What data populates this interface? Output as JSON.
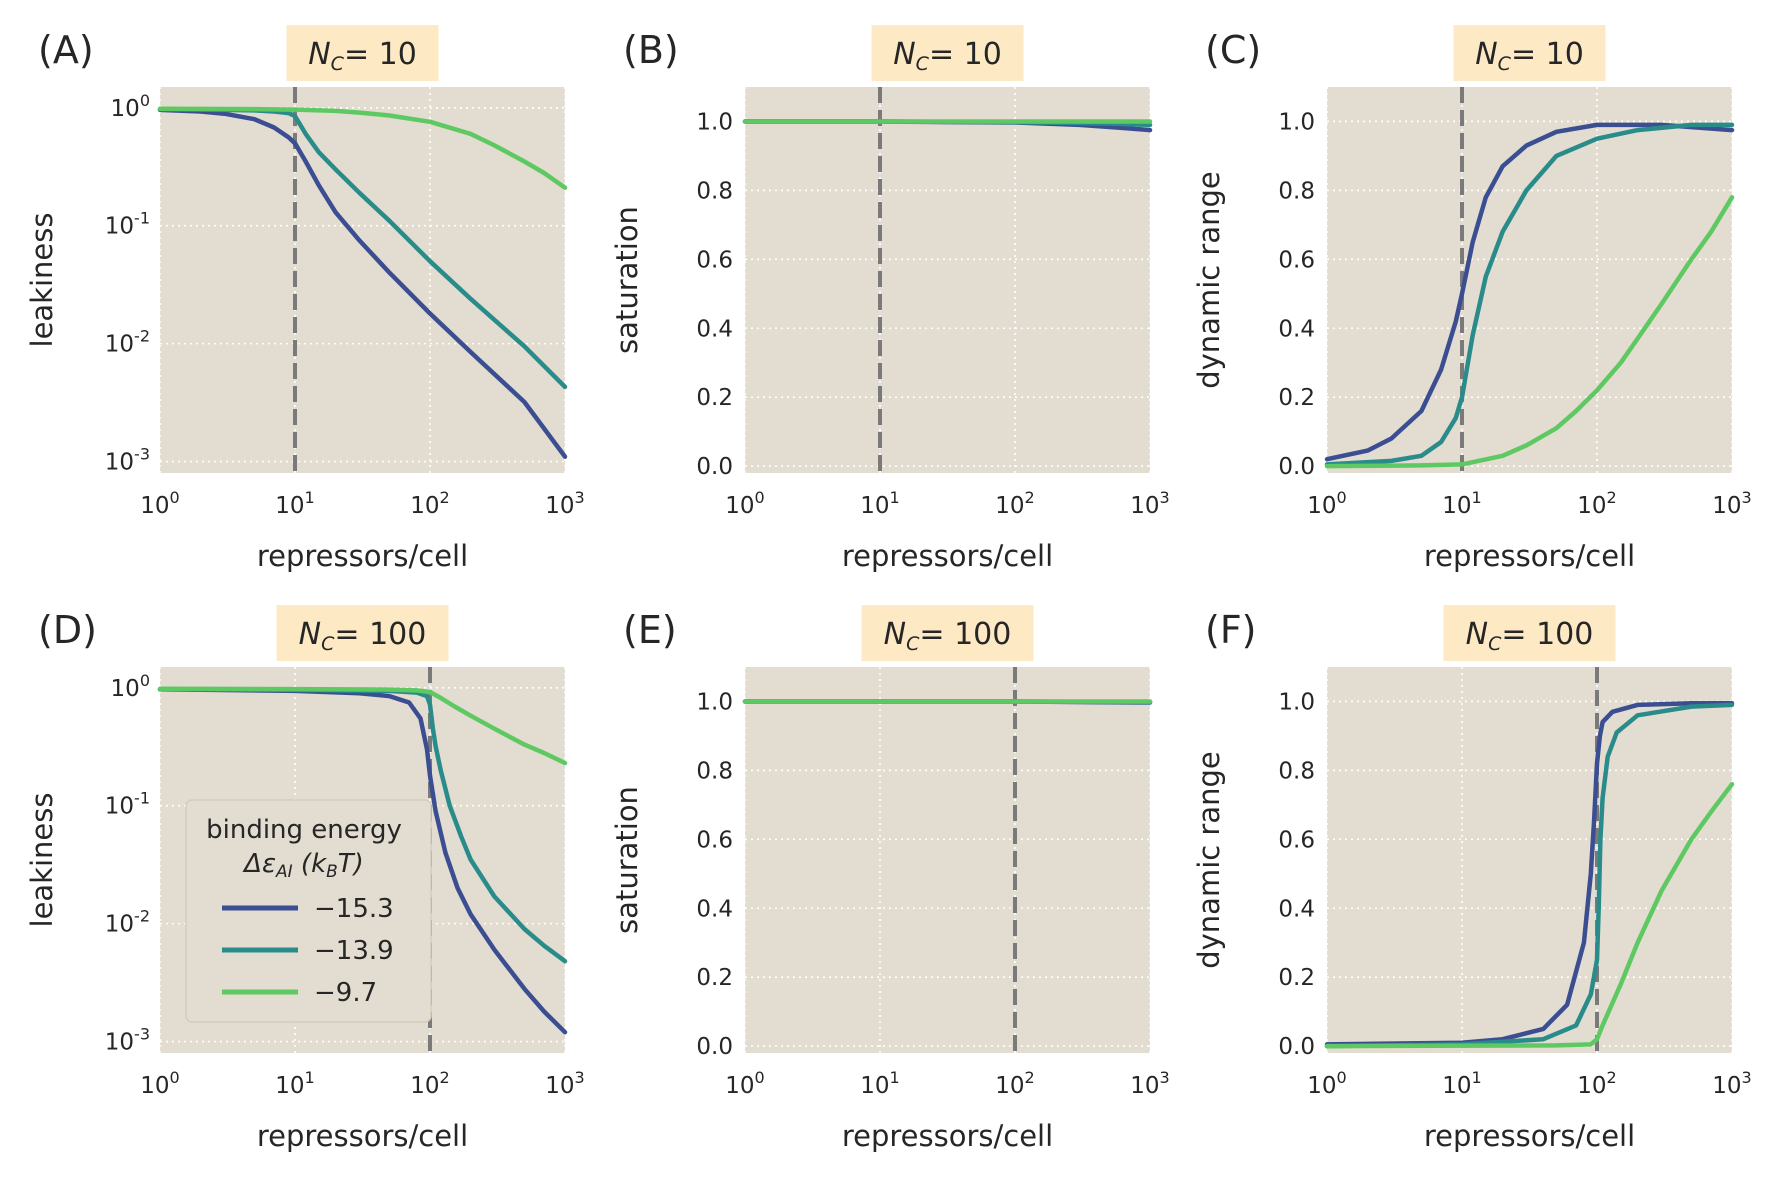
{
  "colors": {
    "plot_bg": "#e3dcd0",
    "grid": "#ffffff",
    "label_box": "#fde9c4",
    "vline": "#7a7a7a",
    "text": "#262626",
    "series": [
      "#3b4e91",
      "#2a8c8a",
      "#5ec962"
    ]
  },
  "legend": {
    "title_line1": "binding energy",
    "title_line2_symbol": "Δε",
    "title_line2_sub": "AI",
    "title_line2_unit": "(k",
    "title_line2_unit_sub": "B",
    "title_line2_unit_end": "T)",
    "entries": [
      "−15.3",
      "−13.9",
      "−9.7"
    ]
  },
  "chart_data": [
    {
      "panel": "(A)",
      "type": "line",
      "label_prefix": "N",
      "label_sub": "C",
      "label_text": "= 10",
      "xlabel": "repressors/cell",
      "ylabel": "leakiness",
      "xscale": "log",
      "xlim": [
        1,
        1000
      ],
      "xticks": [
        "10^0",
        "10^1",
        "10^2",
        "10^3"
      ],
      "yscale": "log",
      "ylim": [
        0.0008,
        1.5
      ],
      "yticks": [
        "10^0",
        "10^-1",
        "10^-2",
        "10^-3"
      ],
      "vline": 10,
      "grid": true,
      "series": [
        {
          "name": "−15.3",
          "x": [
            1,
            2,
            3,
            5,
            7,
            9,
            10,
            12,
            15,
            20,
            30,
            50,
            100,
            200,
            500,
            1000
          ],
          "y": [
            0.96,
            0.93,
            0.89,
            0.8,
            0.68,
            0.56,
            0.5,
            0.35,
            0.22,
            0.13,
            0.075,
            0.04,
            0.018,
            0.0085,
            0.0032,
            0.0011
          ]
        },
        {
          "name": "−13.9",
          "x": [
            1,
            3,
            5,
            7,
            9,
            10,
            12,
            15,
            20,
            30,
            50,
            100,
            200,
            500,
            1000
          ],
          "y": [
            0.97,
            0.96,
            0.95,
            0.93,
            0.9,
            0.85,
            0.6,
            0.42,
            0.3,
            0.19,
            0.11,
            0.05,
            0.024,
            0.0095,
            0.0043
          ]
        },
        {
          "name": "−9.7",
          "x": [
            1,
            5,
            10,
            20,
            30,
            50,
            100,
            200,
            300,
            500,
            700,
            1000
          ],
          "y": [
            0.98,
            0.975,
            0.965,
            0.94,
            0.91,
            0.86,
            0.76,
            0.6,
            0.48,
            0.35,
            0.28,
            0.21
          ]
        }
      ]
    },
    {
      "panel": "(B)",
      "type": "line",
      "label_prefix": "N",
      "label_sub": "C",
      "label_text": "= 10",
      "xlabel": "repressors/cell",
      "ylabel": "saturation",
      "xscale": "log",
      "xlim": [
        1,
        1000
      ],
      "xticks": [
        "10^0",
        "10^1",
        "10^2",
        "10^3"
      ],
      "yscale": "linear",
      "ylim": [
        -0.02,
        1.1
      ],
      "yticks": [
        "0.0",
        "0.2",
        "0.4",
        "0.6",
        "0.8",
        "1.0"
      ],
      "vline": 10,
      "grid": true,
      "series": [
        {
          "name": "−15.3",
          "x": [
            1,
            10,
            100,
            300,
            600,
            1000
          ],
          "y": [
            1.0,
            1.0,
            0.997,
            0.99,
            0.982,
            0.975
          ]
        },
        {
          "name": "−13.9",
          "x": [
            1,
            10,
            100,
            500,
            1000
          ],
          "y": [
            1.0,
            1.0,
            0.998,
            0.994,
            0.99
          ]
        },
        {
          "name": "−9.7",
          "x": [
            1,
            10,
            100,
            1000
          ],
          "y": [
            1.0,
            1.0,
            1.0,
            1.0
          ]
        }
      ]
    },
    {
      "panel": "(C)",
      "type": "line",
      "label_prefix": "N",
      "label_sub": "C",
      "label_text": "= 10",
      "xlabel": "repressors/cell",
      "ylabel": "dynamic range",
      "xscale": "log",
      "xlim": [
        1,
        1000
      ],
      "xticks": [
        "10^0",
        "10^1",
        "10^2",
        "10^3"
      ],
      "yscale": "linear",
      "ylim": [
        -0.02,
        1.1
      ],
      "yticks": [
        "0.0",
        "0.2",
        "0.4",
        "0.6",
        "0.8",
        "1.0"
      ],
      "vline": 10,
      "grid": true,
      "series": [
        {
          "name": "−15.3",
          "x": [
            1,
            2,
            3,
            5,
            7,
            9,
            10,
            12,
            15,
            20,
            30,
            50,
            100,
            300,
            1000
          ],
          "y": [
            0.02,
            0.045,
            0.08,
            0.16,
            0.28,
            0.42,
            0.5,
            0.65,
            0.78,
            0.87,
            0.93,
            0.97,
            0.99,
            0.99,
            0.975
          ]
        },
        {
          "name": "−13.9",
          "x": [
            1,
            3,
            5,
            7,
            9,
            10,
            12,
            15,
            20,
            30,
            50,
            100,
            200,
            500,
            1000
          ],
          "y": [
            0.005,
            0.015,
            0.03,
            0.07,
            0.14,
            0.2,
            0.38,
            0.55,
            0.68,
            0.8,
            0.9,
            0.95,
            0.975,
            0.99,
            0.99
          ]
        },
        {
          "name": "−9.7",
          "x": [
            1,
            5,
            10,
            20,
            30,
            50,
            70,
            100,
            150,
            200,
            300,
            500,
            700,
            1000
          ],
          "y": [
            0.0,
            0.002,
            0.005,
            0.03,
            0.06,
            0.11,
            0.16,
            0.22,
            0.3,
            0.37,
            0.47,
            0.6,
            0.68,
            0.78
          ]
        }
      ]
    },
    {
      "panel": "(D)",
      "type": "line",
      "label_prefix": "N",
      "label_sub": "C",
      "label_text": "= 100",
      "xlabel": "repressors/cell",
      "ylabel": "leakiness",
      "xscale": "log",
      "xlim": [
        1,
        1000
      ],
      "xticks": [
        "10^0",
        "10^1",
        "10^2",
        "10^3"
      ],
      "yscale": "log",
      "ylim": [
        0.0008,
        1.5
      ],
      "yticks": [
        "10^0",
        "10^-1",
        "10^-2",
        "10^-3"
      ],
      "vline": 100,
      "grid": true,
      "series": [
        {
          "name": "−15.3",
          "x": [
            1,
            10,
            30,
            50,
            70,
            85,
            95,
            100,
            110,
            130,
            160,
            200,
            300,
            500,
            700,
            1000
          ],
          "y": [
            0.97,
            0.94,
            0.9,
            0.85,
            0.75,
            0.55,
            0.3,
            0.18,
            0.09,
            0.04,
            0.02,
            0.012,
            0.006,
            0.0028,
            0.0018,
            0.0012
          ]
        },
        {
          "name": "−13.9",
          "x": [
            1,
            10,
            50,
            80,
            95,
            100,
            105,
            110,
            120,
            140,
            170,
            200,
            300,
            500,
            700,
            1000
          ],
          "y": [
            0.97,
            0.96,
            0.94,
            0.91,
            0.85,
            0.72,
            0.45,
            0.32,
            0.2,
            0.1,
            0.055,
            0.035,
            0.017,
            0.009,
            0.0065,
            0.0048
          ]
        },
        {
          "name": "−9.7",
          "x": [
            1,
            10,
            50,
            80,
            100,
            120,
            150,
            200,
            300,
            500,
            700,
            1000
          ],
          "y": [
            0.98,
            0.975,
            0.965,
            0.95,
            0.92,
            0.82,
            0.7,
            0.58,
            0.45,
            0.33,
            0.28,
            0.23
          ]
        }
      ]
    },
    {
      "panel": "(E)",
      "type": "line",
      "label_prefix": "N",
      "label_sub": "C",
      "label_text": "= 100",
      "xlabel": "repressors/cell",
      "ylabel": "saturation",
      "xscale": "log",
      "xlim": [
        1,
        1000
      ],
      "xticks": [
        "10^0",
        "10^1",
        "10^2",
        "10^3"
      ],
      "yscale": "linear",
      "ylim": [
        -0.02,
        1.1
      ],
      "yticks": [
        "0.0",
        "0.2",
        "0.4",
        "0.6",
        "0.8",
        "1.0"
      ],
      "vline": 100,
      "grid": true,
      "series": [
        {
          "name": "−15.3",
          "x": [
            1,
            100,
            500,
            1000
          ],
          "y": [
            1.0,
            1.0,
            0.998,
            0.997
          ]
        },
        {
          "name": "−13.9",
          "x": [
            1,
            100,
            1000
          ],
          "y": [
            1.0,
            1.0,
            0.998
          ]
        },
        {
          "name": "−9.7",
          "x": [
            1,
            100,
            1000
          ],
          "y": [
            1.0,
            1.0,
            1.0
          ]
        }
      ]
    },
    {
      "panel": "(F)",
      "type": "line",
      "label_prefix": "N",
      "label_sub": "C",
      "label_text": "= 100",
      "xlabel": "repressors/cell",
      "ylabel": "dynamic range",
      "xscale": "log",
      "xlim": [
        1,
        1000
      ],
      "xticks": [
        "10^0",
        "10^1",
        "10^2",
        "10^3"
      ],
      "yscale": "linear",
      "ylim": [
        -0.02,
        1.1
      ],
      "yticks": [
        "0.0",
        "0.2",
        "0.4",
        "0.6",
        "0.8",
        "1.0"
      ],
      "vline": 100,
      "grid": true,
      "series": [
        {
          "name": "−15.3",
          "x": [
            1,
            10,
            20,
            40,
            60,
            80,
            90,
            95,
            100,
            105,
            110,
            130,
            200,
            500,
            1000
          ],
          "y": [
            0.005,
            0.01,
            0.02,
            0.05,
            0.12,
            0.3,
            0.5,
            0.65,
            0.82,
            0.9,
            0.94,
            0.97,
            0.99,
            0.995,
            0.995
          ]
        },
        {
          "name": "−13.9",
          "x": [
            1,
            10,
            40,
            70,
            90,
            100,
            103,
            106,
            110,
            120,
            140,
            200,
            500,
            1000
          ],
          "y": [
            0.0,
            0.005,
            0.02,
            0.06,
            0.15,
            0.25,
            0.4,
            0.6,
            0.72,
            0.84,
            0.91,
            0.96,
            0.985,
            0.99
          ]
        },
        {
          "name": "−9.7",
          "x": [
            1,
            50,
            90,
            100,
            110,
            150,
            200,
            300,
            500,
            700,
            1000
          ],
          "y": [
            0.0,
            0.002,
            0.005,
            0.02,
            0.06,
            0.18,
            0.3,
            0.45,
            0.6,
            0.68,
            0.76
          ]
        }
      ]
    }
  ]
}
